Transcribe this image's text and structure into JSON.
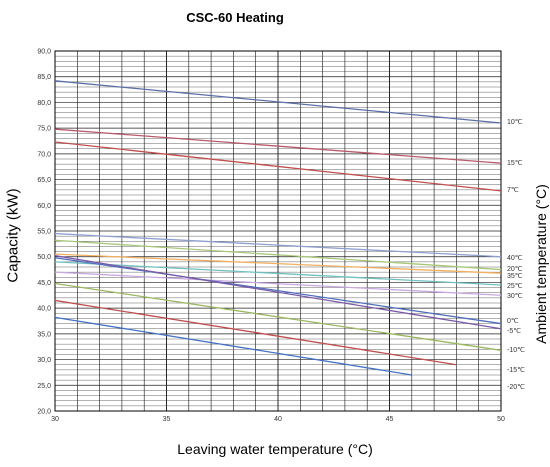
{
  "chart_data": {
    "type": "line",
    "title": "CSC-60 Heating",
    "xlabel": "Leaving water temperature (°C)",
    "ylabel": "Capacity (kW)",
    "ylabel_right": "Ambient temperature (°C)",
    "xlim": [
      30,
      50
    ],
    "ylim": [
      20,
      90
    ],
    "x_ticks": [
      "30",
      "35",
      "40",
      "45",
      "50"
    ],
    "y_ticks": [
      "20,0",
      "25,0",
      "30,0",
      "35,0",
      "40,0",
      "45,0",
      "50,0",
      "55,0",
      "60,0",
      "65,0",
      "70,0",
      "75,0",
      "80,0",
      "85,0",
      "90,0"
    ],
    "grid": true,
    "series": [
      {
        "name": "10℃",
        "color": "#5a6fa8",
        "x": [
          30,
          50
        ],
        "y": [
          84.2,
          76.0
        ]
      },
      {
        "name": "15℃",
        "color": "#b85a6a",
        "x": [
          30,
          50
        ],
        "y": [
          74.8,
          68.2
        ]
      },
      {
        "name": "7℃",
        "color": "#c0504d",
        "x": [
          30,
          50
        ],
        "y": [
          72.3,
          62.8
        ]
      },
      {
        "name": "40℃",
        "color": "#8fa0d0",
        "x": [
          30,
          50
        ],
        "y": [
          54.5,
          50.0
        ]
      },
      {
        "name": "20℃",
        "color": "#a8c878",
        "x": [
          30,
          50
        ],
        "y": [
          53.2,
          47.5
        ]
      },
      {
        "name": "35℃",
        "color": "#f0b060",
        "x": [
          30,
          50
        ],
        "y": [
          50.5,
          46.8
        ]
      },
      {
        "name": "25℃",
        "color": "#70c0c0",
        "x": [
          30,
          50
        ],
        "y": [
          49.0,
          44.5
        ]
      },
      {
        "name": "30℃",
        "color": "#c8a8e0",
        "x": [
          30,
          50
        ],
        "y": [
          47.0,
          42.5
        ]
      },
      {
        "name": "0℃",
        "color": "#4f6fbd",
        "x": [
          30,
          50
        ],
        "y": [
          49.8,
          37.0
        ]
      },
      {
        "name": "-5℃",
        "color": "#7a5aa8",
        "x": [
          30,
          50
        ],
        "y": [
          50.2,
          36.0
        ]
      },
      {
        "name": "-10℃",
        "color": "#9ab860",
        "x": [
          30,
          50
        ],
        "y": [
          44.8,
          31.8
        ]
      },
      {
        "name": "-15℃",
        "color": "#c05050",
        "x": [
          30,
          48
        ],
        "y": [
          41.5,
          29.0
        ]
      },
      {
        "name": "-20℃",
        "color": "#4472c4",
        "x": [
          30,
          46
        ],
        "y": [
          38.2,
          27.0
        ]
      }
    ]
  }
}
